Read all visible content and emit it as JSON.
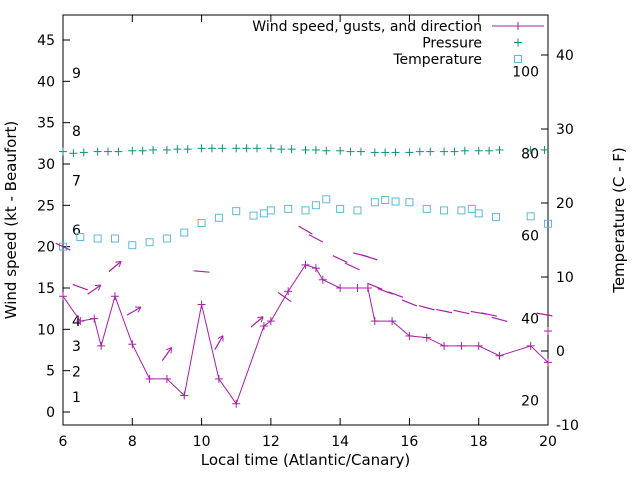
{
  "chart_data": {
    "type": "line",
    "title": "",
    "xlabel": "Local time (Atlantic/Canary)",
    "ylabel": "Wind speed (kt - Beaufort)",
    "y2label": "Temperature (C - F)",
    "xlim": [
      6,
      20
    ],
    "ylim": [
      0,
      45
    ],
    "y2lim": [
      -10,
      40
    ],
    "xticks": [
      6,
      8,
      10,
      12,
      14,
      16,
      18,
      20
    ],
    "yticks": [
      0,
      5,
      10,
      15,
      20,
      25,
      30,
      35,
      40,
      45
    ],
    "y2ticks": [
      -10,
      0,
      10,
      20,
      30,
      40
    ],
    "grid": false,
    "legend_position": "top-right-inside",
    "background": "#ffffff",
    "beaufort_scale_labels": [
      {
        "label": "9",
        "kt": 41
      },
      {
        "label": "8",
        "kt": 34
      },
      {
        "label": "7",
        "kt": 28
      },
      {
        "label": "6",
        "kt": 22
      },
      {
        "label": "4",
        "kt": 11
      },
      {
        "label": "3",
        "kt": 8
      },
      {
        "label": "2",
        "kt": 4.9
      },
      {
        "label": "1",
        "kt": 1.8
      }
    ],
    "fahrenheit_scale_labels": [
      {
        "label": "100",
        "c": 37.8
      },
      {
        "label": "80",
        "c": 26.7
      },
      {
        "label": "60",
        "c": 15.6
      },
      {
        "label": "40",
        "c": 4.4
      },
      {
        "label": "20",
        "c": -6.7
      }
    ],
    "legend": [
      {
        "label": "Wind speed, gusts, and direction",
        "series": "wind_speed",
        "sample": "line-plus"
      },
      {
        "label": "Pressure",
        "series": "pressure",
        "sample": "plus"
      },
      {
        "label": "Temperature",
        "series": "temperature",
        "sample": "square"
      }
    ],
    "series": {
      "wind_speed": {
        "axis": "left",
        "unit": "kt",
        "color": "#a820a8",
        "marker": "plus",
        "points": [
          [
            6.0,
            14
          ],
          [
            6.5,
            11
          ],
          [
            6.9,
            11.3
          ],
          [
            7.1,
            8
          ],
          [
            7.5,
            14
          ],
          [
            8.0,
            8.2
          ],
          [
            8.5,
            4
          ],
          [
            9.0,
            4
          ],
          [
            9.5,
            2
          ],
          [
            10.0,
            13
          ],
          [
            10.5,
            4
          ],
          [
            11.0,
            1
          ],
          [
            11.8,
            10.4
          ],
          [
            12.0,
            11
          ],
          [
            12.5,
            14.6
          ],
          [
            13.0,
            17.8
          ],
          [
            13.3,
            17.4
          ],
          [
            13.5,
            16
          ],
          [
            14.0,
            15
          ],
          [
            14.5,
            15
          ],
          [
            14.8,
            15
          ],
          [
            15.0,
            11
          ],
          [
            15.5,
            11
          ],
          [
            16.0,
            9.2
          ],
          [
            16.5,
            9
          ],
          [
            17.0,
            8
          ],
          [
            17.5,
            8
          ],
          [
            18.0,
            8
          ],
          [
            18.6,
            6.8
          ],
          [
            19.5,
            8
          ],
          [
            20.0,
            6
          ]
        ],
        "isolated_points": [
          [
            20.0,
            9.8
          ]
        ]
      },
      "gusts": {
        "axis": "left",
        "unit": "kt",
        "color": "#a820a8",
        "style": "direction-barb",
        "barbs": [
          [
            6.0,
            20.0,
            -25,
            0
          ],
          [
            6.5,
            15.1,
            -20,
            0
          ],
          [
            6.9,
            14.8,
            35,
            1
          ],
          [
            7.5,
            17.6,
            40,
            1
          ],
          [
            8.05,
            12.2,
            30,
            1
          ],
          [
            9.0,
            7.0,
            55,
            1
          ],
          [
            10.0,
            17.0,
            -5,
            0
          ],
          [
            10.5,
            8.4,
            60,
            1
          ],
          [
            11.6,
            10.9,
            40,
            1
          ],
          [
            12.4,
            13.9,
            -35,
            0
          ],
          [
            13.0,
            22.0,
            -30,
            0
          ],
          [
            13.3,
            21.0,
            -28,
            0
          ],
          [
            14.0,
            18.5,
            -25,
            0
          ],
          [
            14.35,
            17.6,
            -25,
            0
          ],
          [
            14.6,
            19.0,
            -15,
            0
          ],
          [
            14.85,
            18.7,
            -18,
            0
          ],
          [
            15.0,
            15.2,
            -22,
            0
          ],
          [
            15.3,
            14.6,
            -20,
            0
          ],
          [
            15.6,
            14.2,
            -20,
            0
          ],
          [
            16.0,
            13.2,
            -22,
            0
          ],
          [
            16.5,
            12.6,
            -15,
            0
          ],
          [
            17.0,
            12.2,
            -12,
            0
          ],
          [
            17.5,
            12.1,
            -12,
            0
          ],
          [
            18.0,
            12.0,
            -10,
            0
          ],
          [
            18.3,
            11.8,
            -12,
            0
          ],
          [
            18.6,
            11.2,
            -15,
            0
          ],
          [
            19.9,
            11.8,
            -10,
            0
          ]
        ]
      },
      "pressure": {
        "axis": "left-scale-as-plotted",
        "color": "#0f8f7a",
        "marker": "plus",
        "points": [
          [
            6.0,
            31.5
          ],
          [
            6.3,
            31.3
          ],
          [
            6.6,
            31.4
          ],
          [
            7.0,
            31.5
          ],
          [
            7.3,
            31.5
          ],
          [
            7.6,
            31.5
          ],
          [
            8.0,
            31.6
          ],
          [
            8.3,
            31.6
          ],
          [
            8.6,
            31.7
          ],
          [
            9.0,
            31.7
          ],
          [
            9.3,
            31.8
          ],
          [
            9.6,
            31.8
          ],
          [
            10.0,
            31.9
          ],
          [
            10.3,
            31.9
          ],
          [
            10.6,
            31.9
          ],
          [
            11.0,
            31.9
          ],
          [
            11.3,
            31.9
          ],
          [
            11.6,
            31.9
          ],
          [
            12.0,
            31.9
          ],
          [
            12.3,
            31.8
          ],
          [
            12.6,
            31.8
          ],
          [
            13.0,
            31.7
          ],
          [
            13.3,
            31.7
          ],
          [
            13.6,
            31.6
          ],
          [
            14.0,
            31.6
          ],
          [
            14.3,
            31.5
          ],
          [
            14.6,
            31.5
          ],
          [
            15.0,
            31.4
          ],
          [
            15.3,
            31.4
          ],
          [
            15.6,
            31.4
          ],
          [
            16.0,
            31.4
          ],
          [
            16.3,
            31.5
          ],
          [
            16.6,
            31.5
          ],
          [
            17.0,
            31.5
          ],
          [
            17.3,
            31.5
          ],
          [
            17.6,
            31.6
          ],
          [
            18.0,
            31.6
          ],
          [
            18.3,
            31.6
          ],
          [
            18.6,
            31.7
          ],
          [
            19.5,
            31.7
          ],
          [
            19.9,
            31.7
          ]
        ]
      },
      "temperature": {
        "axis": "right",
        "unit": "C",
        "color": "#5fb8da",
        "marker": "open-square",
        "points": [
          [
            6.0,
            14.1
          ],
          [
            6.5,
            15.4
          ],
          [
            7.0,
            15.2
          ],
          [
            7.5,
            15.2
          ],
          [
            8.0,
            14.3
          ],
          [
            8.5,
            14.7
          ],
          [
            9.0,
            15.2
          ],
          [
            9.5,
            16.0
          ],
          [
            10.0,
            17.3
          ],
          [
            10.5,
            18.0
          ],
          [
            11.0,
            18.9
          ],
          [
            11.5,
            18.3
          ],
          [
            11.8,
            18.6
          ],
          [
            12.0,
            19.0
          ],
          [
            12.5,
            19.2
          ],
          [
            13.0,
            19.0
          ],
          [
            13.3,
            19.7
          ],
          [
            13.6,
            20.5
          ],
          [
            14.0,
            19.2
          ],
          [
            14.5,
            19.0
          ],
          [
            15.0,
            20.1
          ],
          [
            15.3,
            20.4
          ],
          [
            15.6,
            20.2
          ],
          [
            16.0,
            20.1
          ],
          [
            16.5,
            19.2
          ],
          [
            17.0,
            19.0
          ],
          [
            17.5,
            19.0
          ],
          [
            17.8,
            19.2
          ],
          [
            18.0,
            18.6
          ],
          [
            18.5,
            18.1
          ],
          [
            19.5,
            18.2
          ],
          [
            20.0,
            17.2
          ]
        ]
      }
    }
  }
}
